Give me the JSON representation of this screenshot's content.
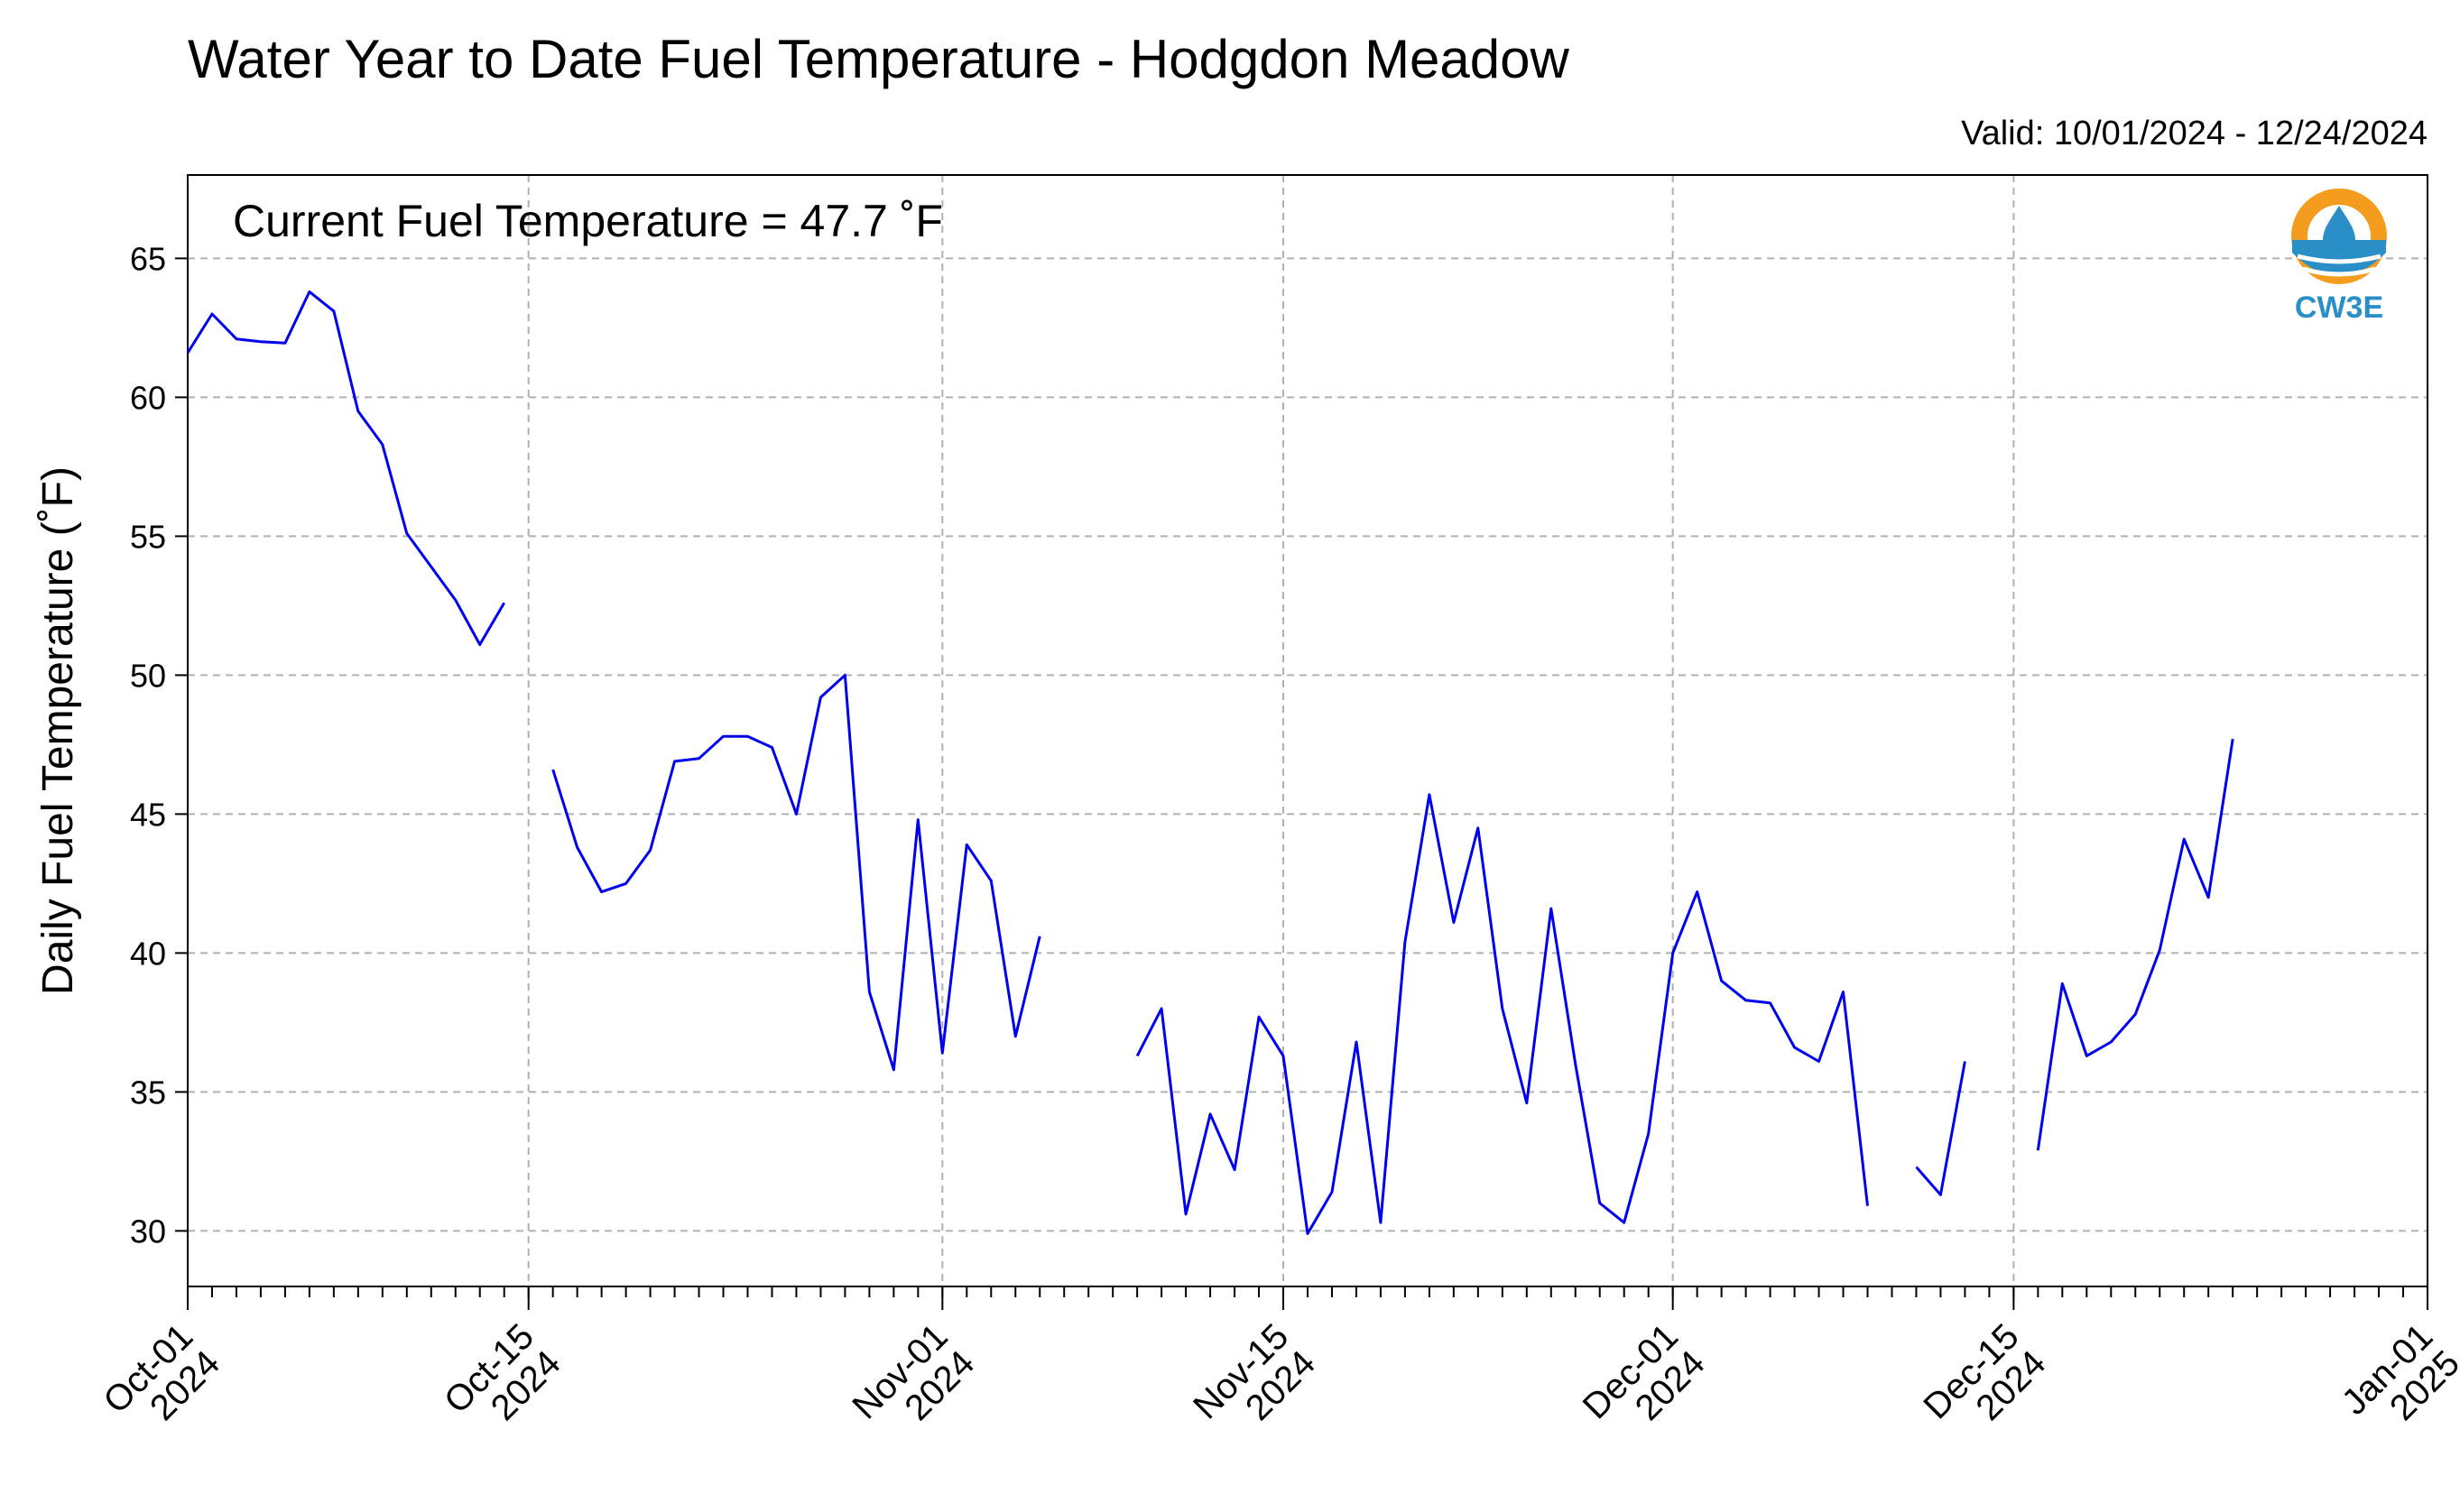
{
  "chart_data": {
    "type": "line",
    "title": "Water Year to Date Fuel Temperature - Hodgdon Meadow",
    "subtitle": "Valid: 10/01/2024 - 12/24/2024",
    "annotation": "Current Fuel Temperature = 47.7 ˚F",
    "ylabel": "Daily Fuel Temperature (˚F)",
    "xlabel": "",
    "x_range": [
      "2024-10-01",
      "2025-01-01"
    ],
    "ylim": [
      28,
      68
    ],
    "y_ticks": [
      30,
      35,
      40,
      45,
      50,
      55,
      60,
      65
    ],
    "x_ticks": [
      {
        "date": "2024-10-01",
        "line1": "Oct-01",
        "line2": "2024"
      },
      {
        "date": "2024-10-15",
        "line1": "Oct-15",
        "line2": "2024"
      },
      {
        "date": "2024-11-01",
        "line1": "Nov-01",
        "line2": "2024"
      },
      {
        "date": "2024-11-15",
        "line1": "Nov-15",
        "line2": "2024"
      },
      {
        "date": "2024-12-01",
        "line1": "Dec-01",
        "line2": "2024"
      },
      {
        "date": "2024-12-15",
        "line1": "Dec-15",
        "line2": "2024"
      },
      {
        "date": "2025-01-01",
        "line1": "Jan-01",
        "line2": "2025"
      }
    ],
    "grid": true,
    "line_color": "#0000ee",
    "logo": {
      "text": "CW3E",
      "color_primary": "#f39c1e",
      "color_secondary": "#2a8fc7"
    },
    "series": [
      {
        "values": [
          [
            "2024-10-01",
            61.6
          ],
          [
            "2024-10-02",
            63.0
          ],
          [
            "2024-10-03",
            62.1
          ],
          [
            "2024-10-04",
            62.0
          ],
          [
            "2024-10-05",
            61.95
          ],
          [
            "2024-10-06",
            63.8
          ],
          [
            "2024-10-07",
            63.1
          ],
          [
            "2024-10-08",
            59.5
          ],
          [
            "2024-10-09",
            58.3
          ],
          [
            "2024-10-10",
            55.1
          ],
          [
            "2024-10-11",
            53.9
          ],
          [
            "2024-10-12",
            52.7
          ],
          [
            "2024-10-13",
            51.1
          ],
          [
            "2024-10-14",
            52.6
          ],
          [
            "2024-10-15",
            null
          ],
          [
            "2024-10-16",
            46.6
          ],
          [
            "2024-10-17",
            43.8
          ],
          [
            "2024-10-18",
            42.2
          ],
          [
            "2024-10-19",
            42.5
          ],
          [
            "2024-10-20",
            43.7
          ],
          [
            "2024-10-21",
            46.9
          ],
          [
            "2024-10-22",
            47.0
          ],
          [
            "2024-10-23",
            47.8
          ],
          [
            "2024-10-24",
            47.8
          ],
          [
            "2024-10-25",
            47.4
          ],
          [
            "2024-10-26",
            45.0
          ],
          [
            "2024-10-27",
            49.2
          ],
          [
            "2024-10-28",
            50.0
          ],
          [
            "2024-10-29",
            38.6
          ],
          [
            "2024-10-30",
            35.8
          ],
          [
            "2024-10-31",
            44.8
          ],
          [
            "2024-11-01",
            36.4
          ],
          [
            "2024-11-02",
            43.9
          ],
          [
            "2024-11-03",
            42.6
          ],
          [
            "2024-11-04",
            37.0
          ],
          [
            "2024-11-05",
            40.6
          ],
          [
            "2024-11-06",
            null
          ],
          [
            "2024-11-07",
            null
          ],
          [
            "2024-11-08",
            null
          ],
          [
            "2024-11-09",
            36.3
          ],
          [
            "2024-11-10",
            38.0
          ],
          [
            "2024-11-11",
            30.6
          ],
          [
            "2024-11-12",
            34.2
          ],
          [
            "2024-11-13",
            32.2
          ],
          [
            "2024-11-14",
            37.7
          ],
          [
            "2024-11-15",
            36.3
          ],
          [
            "2024-11-16",
            29.9
          ],
          [
            "2024-11-17",
            31.4
          ],
          [
            "2024-11-18",
            36.8
          ],
          [
            "2024-11-19",
            30.3
          ],
          [
            "2024-11-20",
            40.4
          ],
          [
            "2024-11-21",
            45.7
          ],
          [
            "2024-11-22",
            41.1
          ],
          [
            "2024-11-23",
            44.5
          ],
          [
            "2024-11-24",
            38.0
          ],
          [
            "2024-11-25",
            34.6
          ],
          [
            "2024-11-26",
            41.6
          ],
          [
            "2024-11-27",
            36.0
          ],
          [
            "2024-11-28",
            31.0
          ],
          [
            "2024-11-29",
            30.3
          ],
          [
            "2024-11-30",
            33.5
          ],
          [
            "2024-12-01",
            40.0
          ],
          [
            "2024-12-02",
            42.2
          ],
          [
            "2024-12-03",
            39.0
          ],
          [
            "2024-12-04",
            38.3
          ],
          [
            "2024-12-05",
            38.2
          ],
          [
            "2024-12-06",
            36.6
          ],
          [
            "2024-12-07",
            36.1
          ],
          [
            "2024-12-08",
            38.6
          ],
          [
            "2024-12-09",
            30.9
          ],
          [
            "2024-12-10",
            null
          ],
          [
            "2024-12-11",
            32.3
          ],
          [
            "2024-12-12",
            31.3
          ],
          [
            "2024-12-13",
            36.1
          ],
          [
            "2024-12-14",
            null
          ],
          [
            "2024-12-15",
            null
          ],
          [
            "2024-12-16",
            32.9
          ],
          [
            "2024-12-17",
            38.9
          ],
          [
            "2024-12-18",
            36.3
          ],
          [
            "2024-12-19",
            36.8
          ],
          [
            "2024-12-20",
            37.8
          ],
          [
            "2024-12-21",
            40.1
          ],
          [
            "2024-12-22",
            44.1
          ],
          [
            "2024-12-23",
            42.0
          ],
          [
            "2024-12-24",
            47.7
          ]
        ]
      }
    ]
  }
}
